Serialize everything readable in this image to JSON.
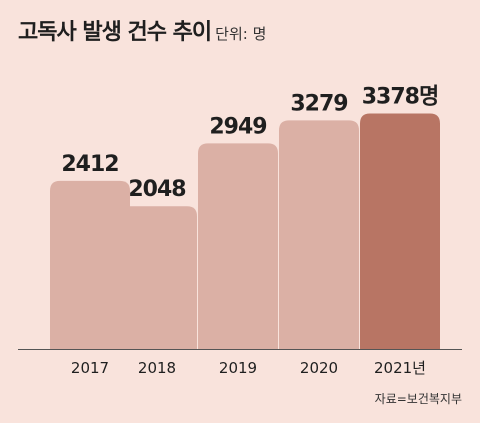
{
  "chart_data": {
    "type": "bar",
    "title": "고독사 발생 건수 추이",
    "unit_label": "단위: 명",
    "categories": [
      "2017",
      "2018",
      "2019",
      "2020",
      "2021년"
    ],
    "values": [
      2412,
      2048,
      2949,
      3279,
      3378
    ],
    "value_labels": [
      "2412",
      "2048",
      "2949",
      "3279",
      "3378명"
    ],
    "source": "자료=보건복지부",
    "bar_color": "#dbb0a5",
    "highlight_color": "#b87564",
    "highlight_index": 4,
    "background_color": "#f9e3dc",
    "ylim": [
      0,
      3500
    ],
    "grid": false
  }
}
